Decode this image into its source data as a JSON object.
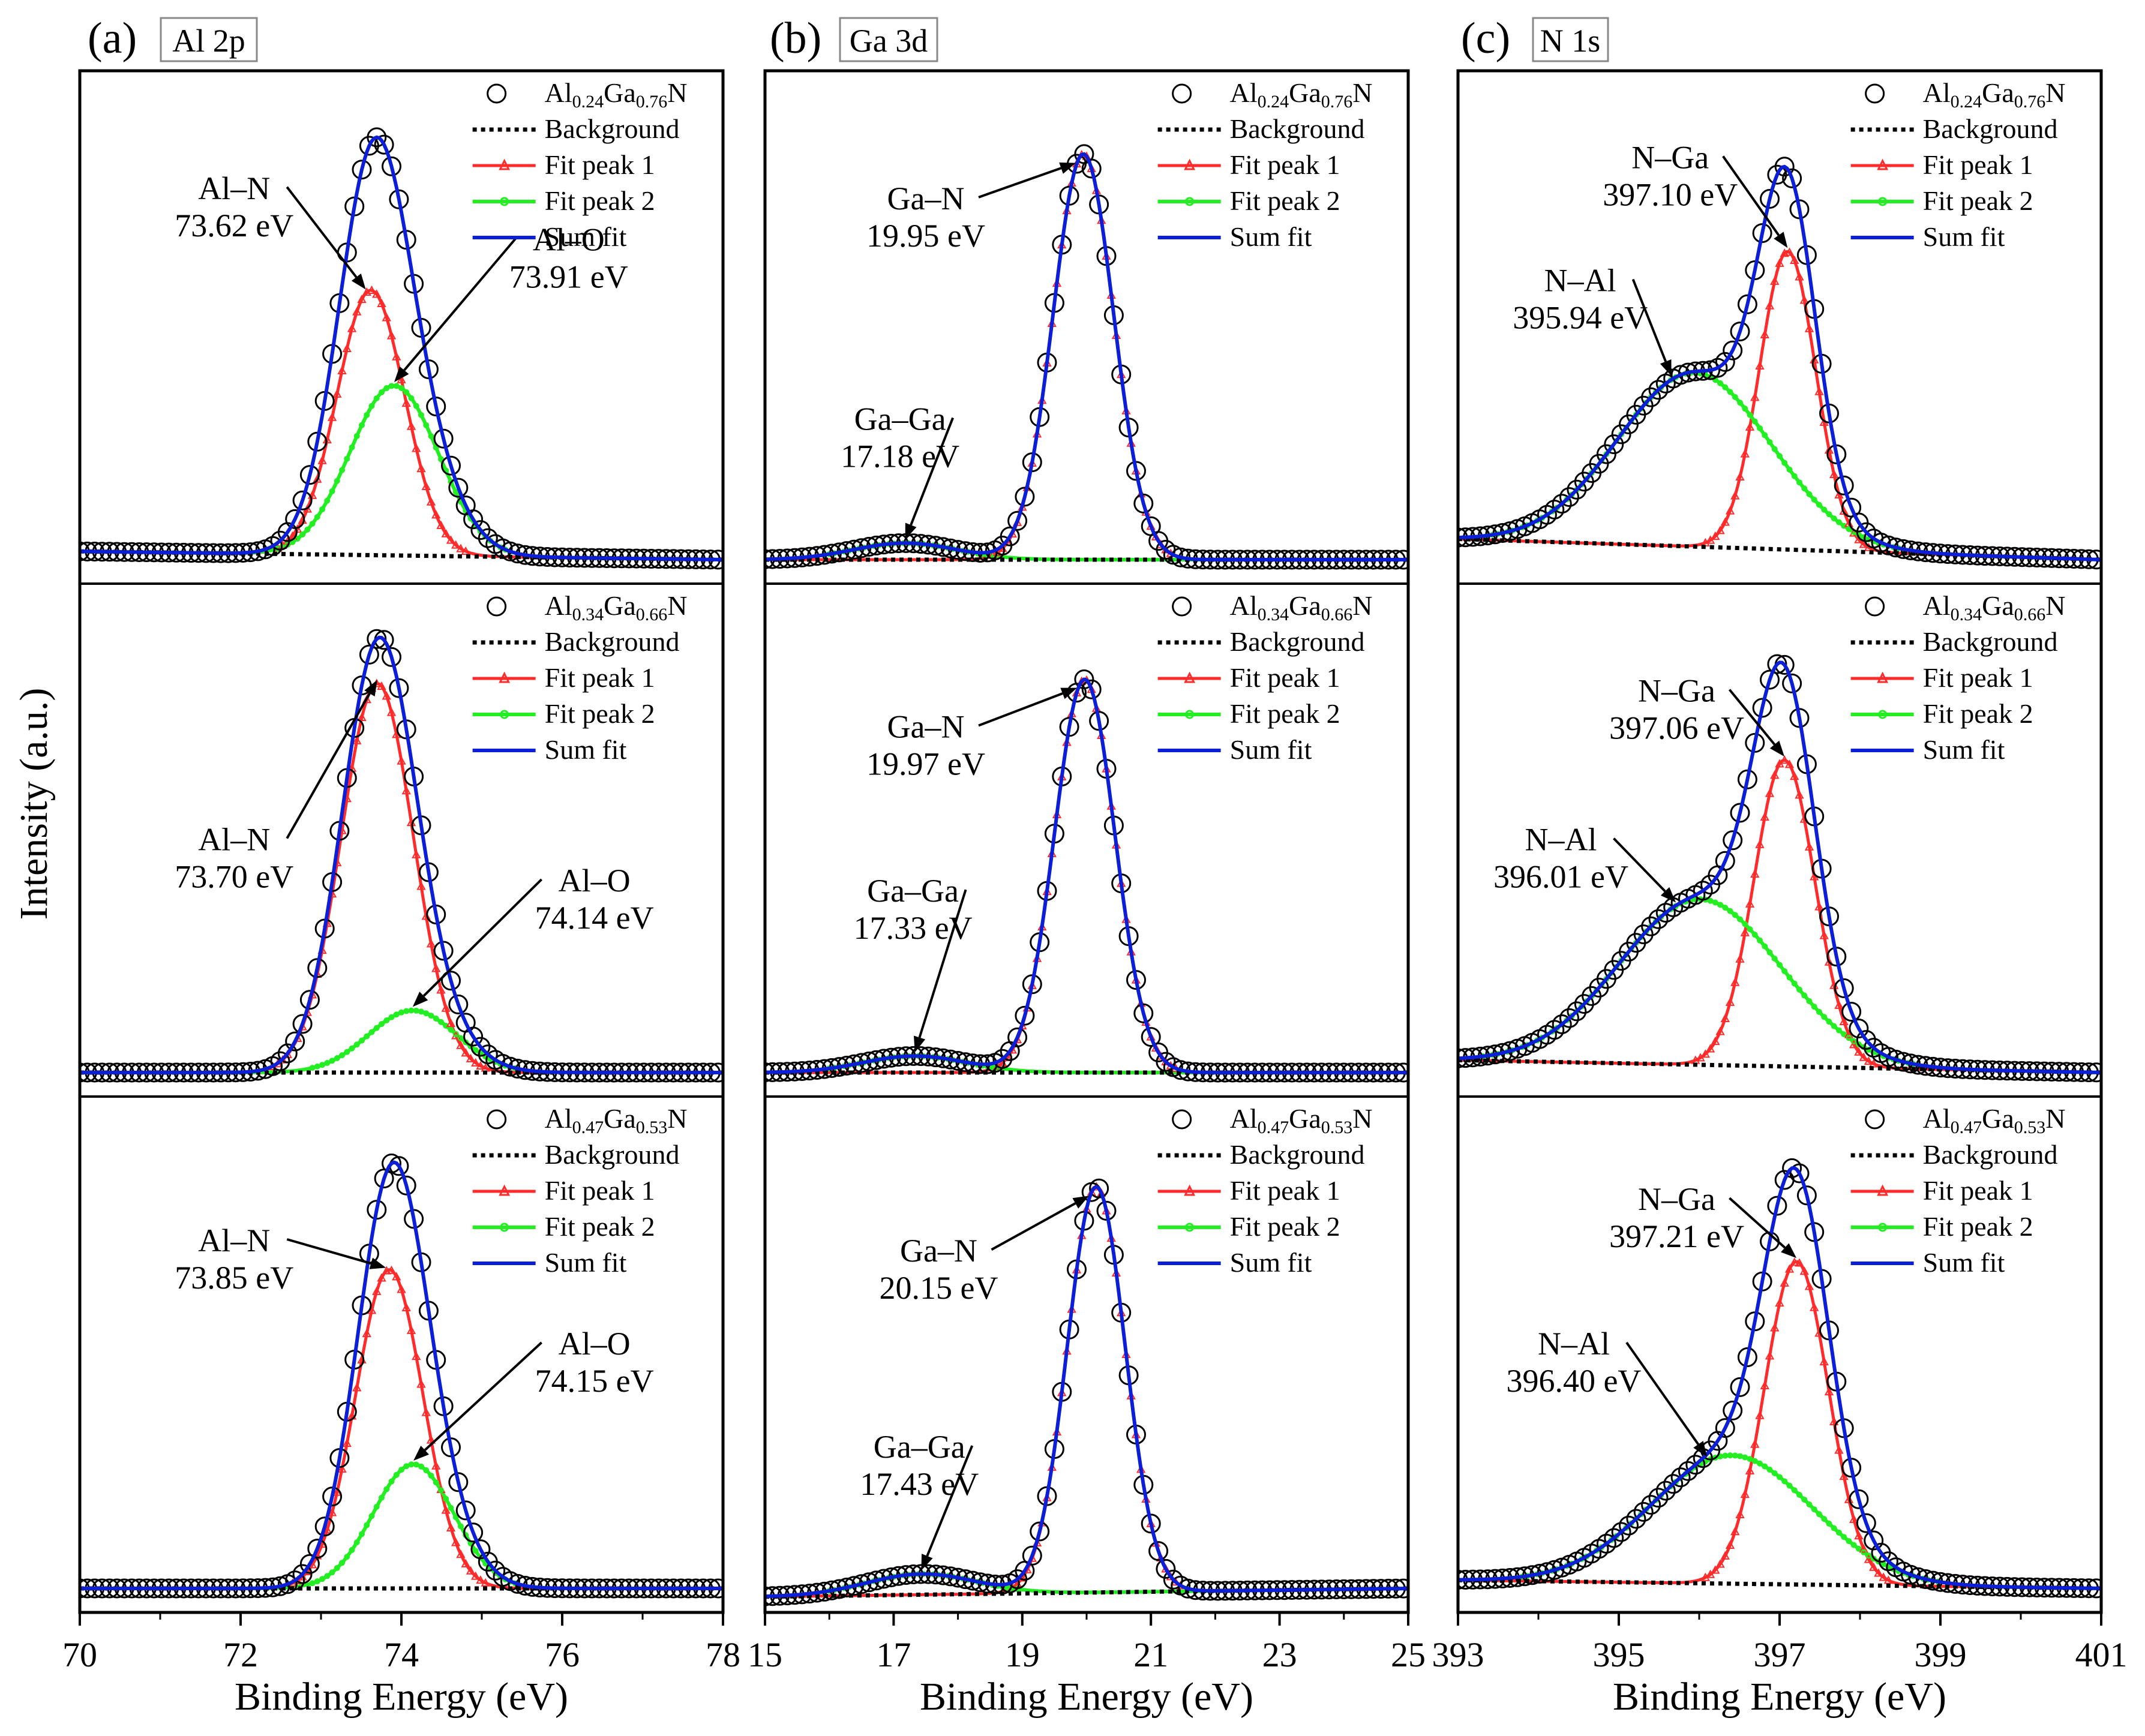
{
  "figure": {
    "ylabel": "Intensity (a.u.)",
    "xlabel": "Binding Energy (eV)"
  },
  "legend": {
    "labels": [
      "Background",
      "Fit peak 1",
      "Fit peak 2",
      "Sum fit"
    ],
    "samples": [
      {
        "base": "Al",
        "al_sub": "0.24",
        "mid": "Ga",
        "ga_sub": "0.76",
        "end": "N"
      },
      {
        "base": "Al",
        "al_sub": "0.34",
        "mid": "Ga",
        "ga_sub": "0.66",
        "end": "N"
      },
      {
        "base": "Al",
        "al_sub": "0.47",
        "mid": "Ga",
        "ga_sub": "0.53",
        "end": "N"
      }
    ]
  },
  "colors": {
    "data": "#000000",
    "background": "#000000",
    "peak1": "#ff2a2a",
    "peak2": "#22ee22",
    "sum": "#0b1fd8"
  },
  "chart_data": [
    {
      "type": "line",
      "panel_label": "(a)",
      "core_level": "Al 2p",
      "xlim": [
        70,
        78
      ],
      "x_ticks": [
        "70",
        "72",
        "74",
        "76",
        "78"
      ],
      "rows": [
        {
          "sample": "Al0.24Ga0.76N",
          "peak1": {
            "label": "Al–N",
            "energy": "73.62 eV",
            "center": 73.62,
            "height": 0.64,
            "sigma": 0.42
          },
          "peak2": {
            "label": "Al–O",
            "energy": "73.91 eV",
            "center": 73.91,
            "height": 0.41,
            "sigma": 0.55
          },
          "bg": [
            0.02,
            0.0
          ]
        },
        {
          "sample": "Al0.34Ga0.66N",
          "peak1": {
            "label": "Al–N",
            "energy": "73.70 eV",
            "center": 73.7,
            "height": 0.94,
            "sigma": 0.45
          },
          "peak2": {
            "label": "Al–O",
            "energy": "74.14 eV",
            "center": 74.14,
            "height": 0.15,
            "sigma": 0.55
          },
          "bg": [
            0.0,
            0.0
          ]
        },
        {
          "sample": "Al0.47Ga0.53N",
          "peak1": {
            "label": "Al–N",
            "energy": "73.85 eV",
            "center": 73.85,
            "height": 0.77,
            "sigma": 0.42
          },
          "peak2": {
            "label": "Al–O",
            "energy": "74.15 eV",
            "center": 74.15,
            "height": 0.3,
            "sigma": 0.5
          },
          "bg": [
            0.0,
            0.0
          ]
        }
      ]
    },
    {
      "type": "line",
      "panel_label": "(b)",
      "core_level": "Ga 3d",
      "xlim": [
        15,
        25
      ],
      "x_ticks": [
        "15",
        "17",
        "19",
        "21",
        "23",
        "25"
      ],
      "rows": [
        {
          "sample": "Al0.24Ga0.76N",
          "peak1": {
            "label": "Ga–N",
            "energy": "19.95 eV",
            "center": 19.95,
            "height": 0.98,
            "sigma": 0.47
          },
          "peak2": {
            "label": "Ga–Ga",
            "energy": "17.18 eV",
            "center": 17.18,
            "height": 0.04,
            "sigma": 0.8
          },
          "bg": [
            0.0,
            0.0
          ]
        },
        {
          "sample": "Al0.34Ga0.66N",
          "peak1": {
            "label": "Ga–N",
            "energy": "19.97 eV",
            "center": 19.97,
            "height": 0.95,
            "sigma": 0.47
          },
          "peak2": {
            "label": "Ga–Ga",
            "energy": "17.33 eV",
            "center": 17.33,
            "height": 0.04,
            "sigma": 0.8
          },
          "bg": [
            0.0,
            0.0
          ]
        },
        {
          "sample": "Al0.47Ga0.53N",
          "peak1": {
            "label": "Ga–N",
            "energy": "20.15 eV",
            "center": 20.15,
            "height": 0.98,
            "sigma": 0.45
          },
          "peak2": {
            "label": "Ga–Ga",
            "energy": "17.43 eV",
            "center": 17.43,
            "height": 0.05,
            "sigma": 0.85
          },
          "bg": [
            -0.02,
            0.0
          ]
        }
      ]
    },
    {
      "type": "line",
      "panel_label": "(c)",
      "core_level": "N 1s",
      "xlim": [
        393,
        401
      ],
      "x_ticks": [
        "393",
        "395",
        "397",
        "399",
        "401"
      ],
      "rows": [
        {
          "sample": "Al0.24Ga0.76N",
          "peak1": {
            "label": "N–Ga",
            "energy": "397.10 eV",
            "center": 397.1,
            "height": 0.72,
            "sigma": 0.35
          },
          "peak2": {
            "label": "N–Al",
            "energy": "395.94 eV",
            "center": 395.94,
            "height": 0.42,
            "sigma": 0.95
          },
          "bg": [
            0.05,
            0.0
          ]
        },
        {
          "sample": "Al0.34Ga0.66N",
          "peak1": {
            "label": "N–Ga",
            "energy": "397.06 eV",
            "center": 397.06,
            "height": 0.74,
            "sigma": 0.38
          },
          "peak2": {
            "label": "N–Al",
            "energy": "396.01 eV",
            "center": 396.01,
            "height": 0.4,
            "sigma": 1.0
          },
          "bg": [
            0.03,
            0.0
          ]
        },
        {
          "sample": "Al0.47Ga0.53N",
          "peak1": {
            "label": "N–Ga",
            "energy": "397.21 eV",
            "center": 397.21,
            "height": 0.78,
            "sigma": 0.4
          },
          "peak2": {
            "label": "N–Al",
            "energy": "396.40 eV",
            "center": 396.4,
            "height": 0.31,
            "sigma": 1.0
          },
          "bg": [
            0.02,
            0.0
          ]
        }
      ]
    }
  ]
}
